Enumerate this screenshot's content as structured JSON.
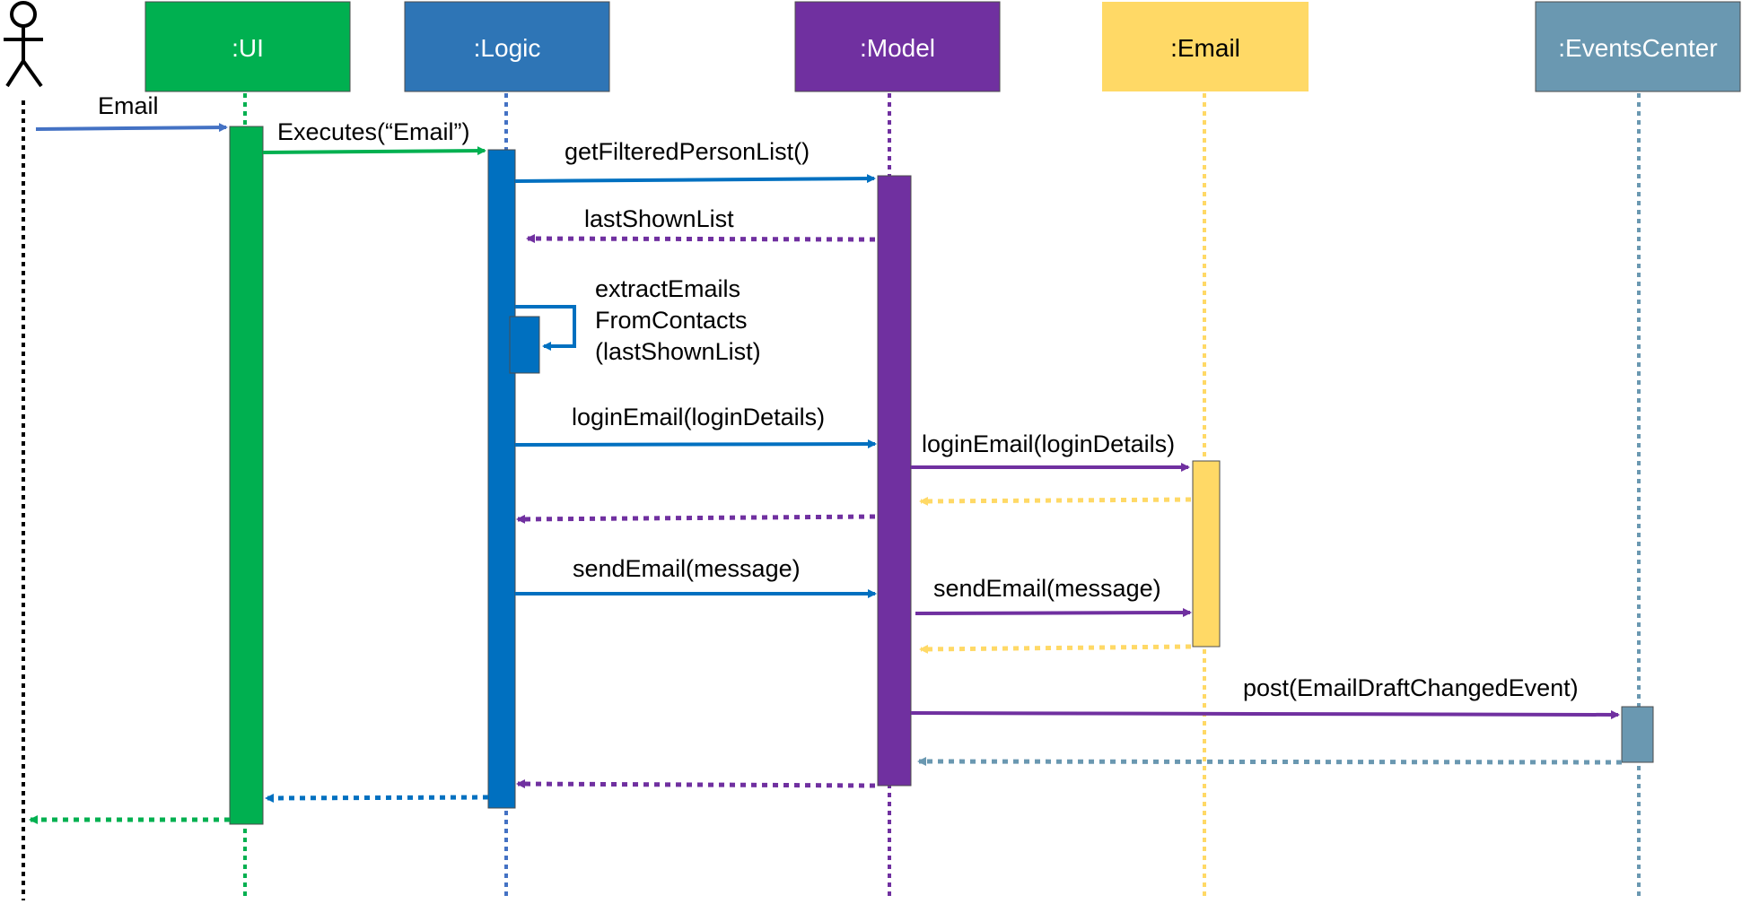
{
  "colors": {
    "ui": "#00b050",
    "logic": "#0070c0",
    "model": "#7030a0",
    "email": "#ffd966",
    "events": "#6a98b1",
    "actor": "#000000"
  },
  "participants": {
    "ui": ":UI",
    "logic": ":Logic",
    "model": ":Model",
    "email": ":Email",
    "events": ":EventsCenter"
  },
  "messages": {
    "m1": "Email",
    "m2": "Executes(“Email”)",
    "m3": "getFilteredPersonList()",
    "m4": "lastShownList",
    "m5_line1": "extractEmails",
    "m5_line2": "FromContacts",
    "m5_line3": "(lastShownList)",
    "m6": "loginEmail(loginDetails)",
    "m7": "loginEmail(loginDetails)",
    "m8": "sendEmail(message)",
    "m9": "sendEmail(message)",
    "m10": "post(EmailDraftChangedEvent)"
  }
}
